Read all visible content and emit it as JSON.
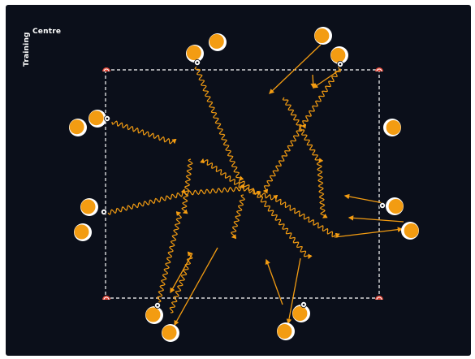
{
  "branding": {
    "word_top": "Centre",
    "word_side": "Training"
  },
  "colors": {
    "background": "#0b0f1a",
    "player": "#f39c12",
    "player_ring": "#ffffff",
    "path": "#f39c12",
    "field_line": "#ffffff",
    "cone": "#e74c3c"
  },
  "icons": {
    "player": "player-marker",
    "ball": "soccer-ball-icon",
    "cone": "cone-icon"
  }
}
